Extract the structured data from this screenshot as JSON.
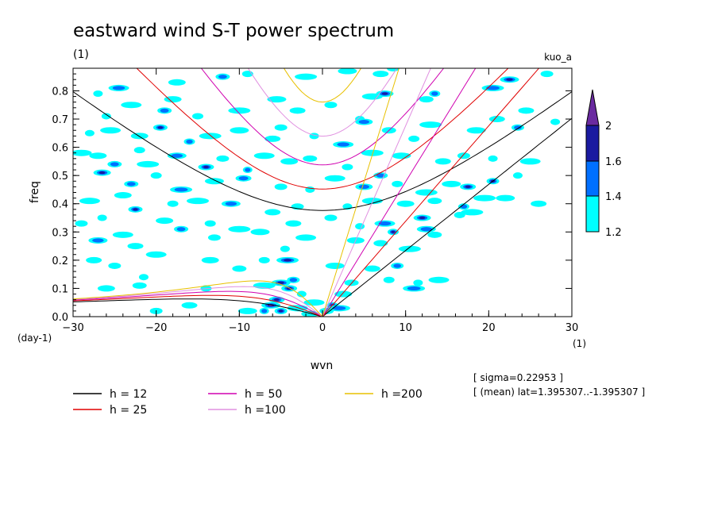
{
  "title": "eastward wind S-T power spectrum",
  "title_unit": "(1)",
  "run_tag": "kuo_a",
  "ylabel": "freq",
  "xlabel": "wvn",
  "y_unit": "(day-1)",
  "x_unit": "(1)",
  "stats": {
    "sigma": "[ sigma=0.22953 ]",
    "mean": "[ (mean) lat=1.395307..-1.395307 ]"
  },
  "colors": {
    "h12": "#000000",
    "h25": "#e00000",
    "h50": "#d000b0",
    "h100": "#e090e0",
    "h200": "#e8c000",
    "shade1": "#00ffff",
    "shade2": "#0070ff",
    "shade3": "#1a1aa0",
    "shade4": "#6a2aa0"
  },
  "chart_data": {
    "type": "heatmap",
    "title": "eastward wind S-T power spectrum",
    "xlabel": "wvn",
    "ylabel": "freq",
    "xlim": [
      -30,
      30
    ],
    "ylim": [
      0,
      0.88
    ],
    "x_ticks": [
      -30,
      -20,
      -10,
      0,
      10,
      20,
      30
    ],
    "y_ticks": [
      0.0,
      0.1,
      0.2,
      0.3,
      0.4,
      0.5,
      0.6,
      0.7,
      0.8
    ],
    "x_tick_labels": [
      "−30",
      "−20",
      "−10",
      "0",
      "10",
      "20",
      "30"
    ],
    "y_tick_labels": [
      "0.0",
      "0.1",
      "0.2",
      "0.3",
      "0.4",
      "0.5",
      "0.6",
      "0.7",
      "0.8"
    ],
    "colorbar": {
      "levels": [
        1.2,
        1.4,
        1.6,
        2
      ],
      "labels": [
        "1.2",
        "1.4",
        "1.6",
        "2"
      ]
    },
    "legend": [
      {
        "label": "h = 12",
        "color_key": "h12",
        "h": 12
      },
      {
        "label": "h = 25",
        "color_key": "h25",
        "h": 25
      },
      {
        "label": "h = 50",
        "color_key": "h50",
        "h": 50
      },
      {
        "label": "h =100",
        "color_key": "h100",
        "h": 100
      },
      {
        "label": "h =200",
        "color_key": "h200",
        "h": 200
      }
    ],
    "dispersion_curves": [
      {
        "name": "h = 12",
        "h": 12
      },
      {
        "name": "h = 25",
        "h": 25
      },
      {
        "name": "h = 50",
        "h": 50
      },
      {
        "name": "h =100",
        "h": 100
      },
      {
        "name": "h =200",
        "h": 200
      }
    ],
    "patches": [
      [
        -27,
        0.79,
        1.2
      ],
      [
        -24.5,
        0.81,
        1.4
      ],
      [
        -17.5,
        0.83,
        1.2
      ],
      [
        -12,
        0.85,
        1.4
      ],
      [
        -9,
        0.86,
        1.2
      ],
      [
        -2,
        0.85,
        1.2
      ],
      [
        3,
        0.87,
        1.2
      ],
      [
        7,
        0.86,
        1.2
      ],
      [
        8.5,
        0.88,
        1.2
      ],
      [
        -26,
        0.71,
        1.2
      ],
      [
        -23,
        0.75,
        1.2
      ],
      [
        -18,
        0.77,
        1.2
      ],
      [
        -19,
        0.73,
        1.4
      ],
      [
        -15,
        0.71,
        1.2
      ],
      [
        -10,
        0.73,
        1.2
      ],
      [
        -5.5,
        0.77,
        1.2
      ],
      [
        -3,
        0.73,
        1.2
      ],
      [
        1,
        0.75,
        1.2
      ],
      [
        4.5,
        0.7,
        1.2
      ],
      [
        6,
        0.78,
        1.2
      ],
      [
        7.5,
        0.79,
        1.6
      ],
      [
        12.5,
        0.77,
        1.2
      ],
      [
        13.5,
        0.79,
        1.4
      ],
      [
        20.5,
        0.81,
        1.4
      ],
      [
        22.5,
        0.84,
        1.6
      ],
      [
        24.5,
        0.73,
        1.2
      ],
      [
        27,
        0.86,
        1.2
      ],
      [
        -28,
        0.65,
        1.2
      ],
      [
        -25.5,
        0.66,
        1.2
      ],
      [
        -22,
        0.64,
        1.2
      ],
      [
        -19.5,
        0.67,
        1.6
      ],
      [
        -16,
        0.62,
        1.4
      ],
      [
        -13.5,
        0.64,
        1.2
      ],
      [
        -10,
        0.66,
        1.2
      ],
      [
        -6,
        0.63,
        1.2
      ],
      [
        -5,
        0.67,
        1.2
      ],
      [
        -1,
        0.64,
        1.2
      ],
      [
        2.5,
        0.61,
        1.4
      ],
      [
        5,
        0.69,
        1.4
      ],
      [
        8,
        0.66,
        1.2
      ],
      [
        11,
        0.63,
        1.2
      ],
      [
        13,
        0.68,
        1.2
      ],
      [
        18.5,
        0.66,
        1.2
      ],
      [
        21,
        0.7,
        1.2
      ],
      [
        23.5,
        0.67,
        1.4
      ],
      [
        28,
        0.69,
        1.2
      ],
      [
        -29,
        0.58,
        1.2
      ],
      [
        -27,
        0.57,
        1.2
      ],
      [
        -25,
        0.54,
        1.4
      ],
      [
        -22,
        0.59,
        1.2
      ],
      [
        -21,
        0.54,
        1.2
      ],
      [
        -17.5,
        0.57,
        1.4
      ],
      [
        -14,
        0.53,
        1.6
      ],
      [
        -12,
        0.56,
        1.2
      ],
      [
        -9,
        0.52,
        1.4
      ],
      [
        -7,
        0.57,
        1.2
      ],
      [
        -4,
        0.55,
        1.2
      ],
      [
        -1.5,
        0.56,
        1.2
      ],
      [
        3,
        0.53,
        1.2
      ],
      [
        6,
        0.58,
        1.2
      ],
      [
        9.5,
        0.57,
        1.2
      ],
      [
        14.5,
        0.55,
        1.2
      ],
      [
        17,
        0.57,
        1.2
      ],
      [
        20.5,
        0.56,
        1.2
      ],
      [
        25,
        0.55,
        1.2
      ],
      [
        -26.5,
        0.51,
        1.6
      ],
      [
        -23,
        0.47,
        1.4
      ],
      [
        -20,
        0.5,
        1.2
      ],
      [
        -17,
        0.45,
        1.4
      ],
      [
        -13,
        0.48,
        1.2
      ],
      [
        -9.5,
        0.49,
        1.4
      ],
      [
        -5,
        0.46,
        1.2
      ],
      [
        -1.5,
        0.45,
        1.2
      ],
      [
        1.5,
        0.49,
        1.2
      ],
      [
        5,
        0.46,
        1.4
      ],
      [
        7,
        0.5,
        1.4
      ],
      [
        9,
        0.47,
        1.2
      ],
      [
        12.5,
        0.44,
        1.2
      ],
      [
        15.5,
        0.47,
        1.2
      ],
      [
        17.5,
        0.46,
        1.6
      ],
      [
        20.5,
        0.48,
        1.6
      ],
      [
        23.5,
        0.5,
        1.2
      ],
      [
        -28,
        0.41,
        1.2
      ],
      [
        -24,
        0.43,
        1.2
      ],
      [
        -22.5,
        0.38,
        1.6
      ],
      [
        -18,
        0.4,
        1.2
      ],
      [
        -15,
        0.41,
        1.2
      ],
      [
        -11,
        0.4,
        1.4
      ],
      [
        -6,
        0.37,
        1.2
      ],
      [
        -3,
        0.39,
        1.2
      ],
      [
        3,
        0.39,
        1.2
      ],
      [
        6,
        0.41,
        1.2
      ],
      [
        10,
        0.4,
        1.2
      ],
      [
        13.5,
        0.41,
        1.2
      ],
      [
        17,
        0.39,
        1.4
      ],
      [
        19.5,
        0.42,
        1.2
      ],
      [
        22,
        0.42,
        1.2
      ],
      [
        26,
        0.4,
        1.2
      ],
      [
        -29,
        0.33,
        1.2
      ],
      [
        -26.5,
        0.35,
        1.2
      ],
      [
        -24,
        0.29,
        1.2
      ],
      [
        -19,
        0.34,
        1.2
      ],
      [
        -17,
        0.31,
        1.4
      ],
      [
        -13.5,
        0.33,
        1.2
      ],
      [
        -10,
        0.31,
        1.2
      ],
      [
        -7.5,
        0.3,
        1.2
      ],
      [
        -3.5,
        0.33,
        1.2
      ],
      [
        1,
        0.35,
        1.2
      ],
      [
        4.5,
        0.32,
        1.2
      ],
      [
        7.5,
        0.33,
        1.4
      ],
      [
        12,
        0.35,
        1.6
      ],
      [
        13.5,
        0.29,
        1.2
      ],
      [
        16.5,
        0.36,
        1.2
      ],
      [
        18,
        0.37,
        1.2
      ],
      [
        -27,
        0.27,
        1.4
      ],
      [
        -22.5,
        0.25,
        1.2
      ],
      [
        -13,
        0.28,
        1.2
      ],
      [
        -4.5,
        0.24,
        1.2
      ],
      [
        -2,
        0.28,
        1.2
      ],
      [
        4,
        0.27,
        1.2
      ],
      [
        7,
        0.26,
        1.2
      ],
      [
        8.5,
        0.3,
        1.6
      ],
      [
        10.5,
        0.24,
        1.2
      ],
      [
        12.5,
        0.31,
        1.4
      ],
      [
        -27.5,
        0.2,
        1.2
      ],
      [
        -25,
        0.18,
        1.2
      ],
      [
        -21.5,
        0.14,
        1.2
      ],
      [
        -20,
        0.22,
        1.2
      ],
      [
        -13.5,
        0.2,
        1.2
      ],
      [
        -10,
        0.17,
        1.2
      ],
      [
        -7,
        0.2,
        1.2
      ],
      [
        -4.2,
        0.2,
        1.6
      ],
      [
        1.5,
        0.18,
        1.2
      ],
      [
        6,
        0.17,
        1.2
      ],
      [
        9,
        0.18,
        1.4
      ],
      [
        11.5,
        0.12,
        1.2
      ],
      [
        14,
        0.13,
        1.2
      ],
      [
        -26,
        0.1,
        1.2
      ],
      [
        -22,
        0.11,
        1.2
      ],
      [
        -14,
        0.1,
        1.2
      ],
      [
        -7,
        0.11,
        1.2
      ],
      [
        -5,
        0.12,
        1.6
      ],
      [
        -4,
        0.1,
        1.6
      ],
      [
        -3.5,
        0.13,
        1.4
      ],
      [
        -2.5,
        0.08,
        1.2
      ],
      [
        -1,
        0.05,
        1.2
      ],
      [
        2.5,
        0.08,
        1.2
      ],
      [
        3.5,
        0.12,
        1.2
      ],
      [
        8,
        0.13,
        1.2
      ],
      [
        11,
        0.1,
        1.4
      ],
      [
        -6.2,
        0.04,
        2
      ],
      [
        -5.5,
        0.06,
        1.6
      ],
      [
        -5,
        0.02,
        1.6
      ],
      [
        -7,
        0.02,
        1.4
      ],
      [
        -3,
        0.03,
        1.2
      ],
      [
        -1.5,
        0.01,
        1.2
      ],
      [
        0.5,
        0.02,
        1.2
      ],
      [
        1.2,
        0.04,
        2
      ],
      [
        2,
        0.03,
        1.4
      ],
      [
        -9,
        0.02,
        1.2
      ],
      [
        -16,
        0.04,
        1.2
      ],
      [
        -20,
        0.02,
        1.2
      ]
    ]
  }
}
